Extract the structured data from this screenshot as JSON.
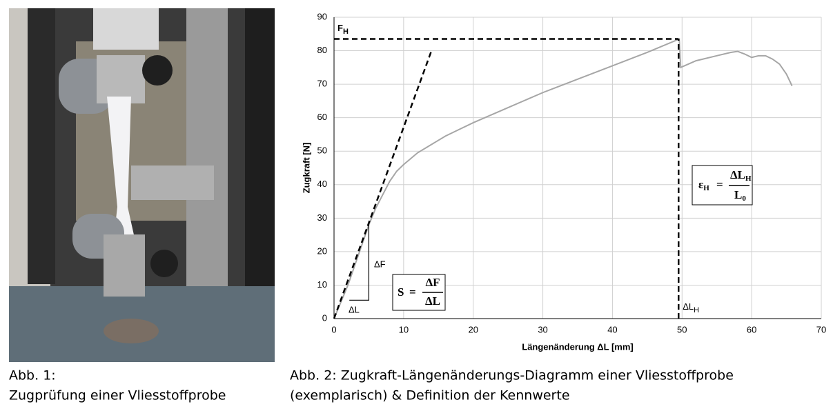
{
  "figure_1": {
    "label": "Abb. 1:",
    "caption": "Zugprüfung einer Vliesstoffprobe"
  },
  "figure_2": {
    "line1": "Abb. 2: Zugkraft-Längenänderungs-Diagramm einer Vliesstoffprobe",
    "line2": "(exemplarisch) & Definition der Kennwerte"
  },
  "chart_data": {
    "type": "line",
    "x_label": "Längenänderung ΔL [mm]",
    "y_label": "Zugkraft [N]",
    "xlim": [
      0,
      70
    ],
    "ylim": [
      0,
      90
    ],
    "xticks": [
      0,
      10,
      20,
      30,
      40,
      50,
      60,
      70
    ],
    "yticks": [
      0,
      10,
      20,
      30,
      40,
      50,
      60,
      70,
      80,
      90
    ],
    "grid": true,
    "series": [
      {
        "color": "#a6a6a6",
        "x": [
          0,
          1,
          2,
          3,
          4,
          5,
          6,
          7,
          8,
          9,
          10,
          12,
          14,
          16,
          18,
          20,
          25,
          30,
          35,
          40,
          45,
          49.6,
          49.8,
          52,
          55,
          57,
          58,
          59,
          60,
          61,
          62,
          63,
          64,
          65,
          65.8
        ],
        "values": [
          0,
          5,
          10,
          16,
          22,
          28,
          33,
          37,
          41,
          44,
          46,
          49.5,
          52,
          54.5,
          56.5,
          58.5,
          63,
          67.5,
          71.5,
          75.5,
          79.5,
          83.5,
          75,
          77,
          78.5,
          79.5,
          79.8,
          79,
          78,
          78.5,
          78.5,
          77.5,
          76,
          73,
          69.5
        ]
      }
    ],
    "annotations": {
      "f_h": {
        "text": "F",
        "sub": "H",
        "value": 83.5
      },
      "dl_h": {
        "text": "ΔL",
        "sub": "H",
        "value": 49.5
      },
      "tangent": {
        "x": [
          0,
          14
        ],
        "y": [
          0,
          80
        ]
      },
      "triangle": {
        "x": [
          2.2,
          5,
          5
        ],
        "y": [
          5.5,
          5.5,
          29
        ],
        "dx_label": "ΔL",
        "dy_label": "ΔF"
      },
      "stiffness_formula": {
        "symbol": "S",
        "equals": "=",
        "numerator": "ΔF",
        "denominator": "ΔL"
      },
      "strain_formula": {
        "symbol": "ε",
        "symbol_sub": "H",
        "equals": "=",
        "numerator": "ΔL",
        "numerator_sub": "H",
        "denominator": "L",
        "denominator_sub": "0"
      }
    }
  }
}
